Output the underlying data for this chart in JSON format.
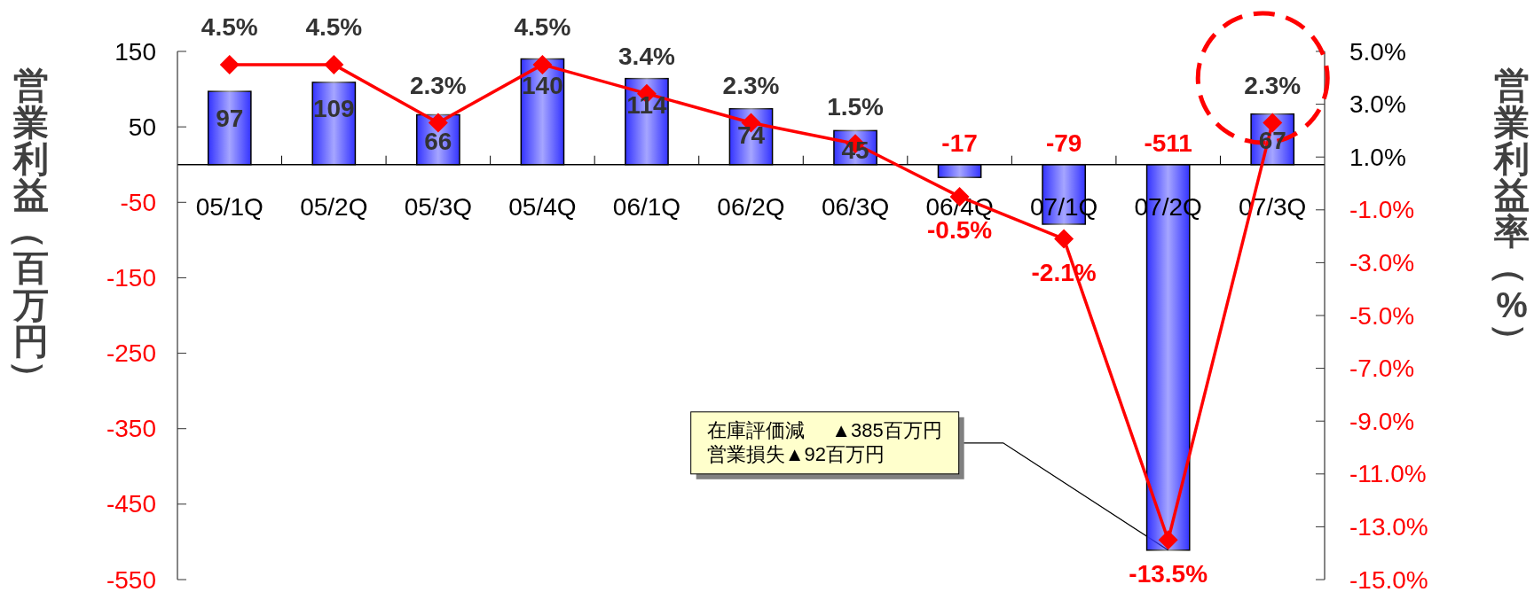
{
  "chart_data": {
    "type": "bar",
    "categories": [
      "05/1Q",
      "05/2Q",
      "05/3Q",
      "05/4Q",
      "06/1Q",
      "06/2Q",
      "06/3Q",
      "06/4Q",
      "07/1Q",
      "07/2Q",
      "07/3Q"
    ],
    "ylabel": "営業利益（百万円）",
    "y2label": "営業利益率（%）",
    "ylim": [
      -550,
      150
    ],
    "yticks": [
      -550,
      -450,
      -350,
      -250,
      -150,
      -50,
      50,
      150
    ],
    "y2lim": [
      -15,
      5
    ],
    "y2ticks": [
      {
        "value": -15,
        "label": "-15.0%"
      },
      {
        "value": -13,
        "label": "-13.0%"
      },
      {
        "value": -11,
        "label": "-11.0%"
      },
      {
        "value": -9,
        "label": "-9.0%"
      },
      {
        "value": -7,
        "label": "-7.0%"
      },
      {
        "value": -5,
        "label": "-5.0%"
      },
      {
        "value": -3,
        "label": "-3.0%"
      },
      {
        "value": -1,
        "label": "-1.0%"
      },
      {
        "value": 1,
        "label": "1.0%"
      },
      {
        "value": 3,
        "label": "3.0%"
      },
      {
        "value": 5,
        "label": "5.0%"
      }
    ],
    "series": [
      {
        "color": "#3333ff",
        "values": [
          97,
          109,
          66,
          140,
          114,
          74,
          45,
          -17,
          -79,
          -511,
          67
        ],
        "value_labels": [
          "97",
          "109",
          "66",
          "140",
          "114",
          "74",
          "45",
          "-17",
          "-79",
          "-511",
          "67"
        ]
      },
      {
        "type": "line",
        "axis": "y2",
        "color": "#ff0000",
        "marker": "diamond",
        "values": [
          4.5,
          4.5,
          2.3,
          4.5,
          3.4,
          2.3,
          1.5,
          -0.5,
          -2.1,
          -13.5,
          2.3
        ],
        "value_labels": [
          "4.5%",
          "4.5%",
          "2.3%",
          "4.5%",
          "3.4%",
          "2.3%",
          "1.5%",
          "-0.5%",
          "-2.1%",
          "-13.5%",
          "2.3%"
        ]
      }
    ],
    "annotations": [
      {
        "text": "在庫評価減     ▲385百万円営業損失▲92百万円",
        "x": "07/2Q",
        "y": -511
      }
    ]
  }
}
